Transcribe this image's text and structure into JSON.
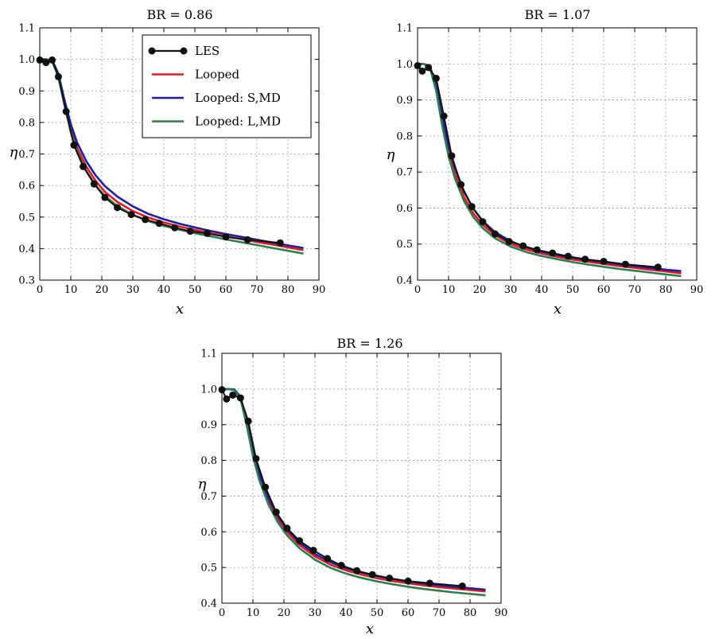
{
  "figure": {
    "legend": [
      {
        "label": "LES",
        "color": "#111111",
        "marker": true
      },
      {
        "label": "Looped",
        "color": "#e31a1c",
        "marker": false
      },
      {
        "label": "Looped: S,MD",
        "color": "#1f1f9f",
        "marker": false
      },
      {
        "label": "Looped: L,MD",
        "color": "#2e7d4f",
        "marker": false
      }
    ]
  },
  "chart_data": [
    {
      "type": "line",
      "title": "BR = 0.86",
      "xlabel": "x",
      "ylabel": "η",
      "xlim": [
        0,
        90
      ],
      "ylim": [
        0.3,
        1.1
      ],
      "xticks": [
        "0",
        "10",
        "20",
        "30",
        "40",
        "50",
        "60",
        "70",
        "80",
        "90"
      ],
      "yticks": [
        "0.3",
        "0.4",
        "0.5",
        "0.6",
        "0.7",
        "0.8",
        "0.9",
        "1.0",
        "1.1"
      ],
      "grid": true,
      "legend_position": "top-right",
      "series": [
        {
          "name": "LES",
          "color": "#111111",
          "x": [
            0,
            2,
            4,
            6,
            8.5,
            11,
            14,
            17.5,
            21,
            25,
            29.5,
            34,
            38.5,
            43.5,
            48.5,
            54,
            60,
            67,
            77.5
          ],
          "y": [
            0.998,
            0.99,
            0.998,
            0.945,
            0.835,
            0.728,
            0.66,
            0.605,
            0.562,
            0.53,
            0.508,
            0.492,
            0.48,
            0.466,
            0.455,
            0.448,
            0.437,
            0.428,
            0.418
          ]
        },
        {
          "name": "Looped",
          "color": "#e31a1c",
          "x": [
            0,
            2,
            4,
            6,
            8,
            10,
            12,
            15,
            18,
            21,
            25,
            30,
            35,
            40,
            45,
            50,
            55,
            60,
            65,
            70,
            75,
            80,
            85
          ],
          "y": [
            1.0,
            1.0,
            0.995,
            0.95,
            0.86,
            0.78,
            0.72,
            0.66,
            0.615,
            0.58,
            0.548,
            0.519,
            0.498,
            0.483,
            0.47,
            0.459,
            0.449,
            0.439,
            0.43,
            0.421,
            0.413,
            0.404,
            0.395
          ]
        },
        {
          "name": "Looped: S,MD",
          "color": "#1f1f9f",
          "x": [
            0,
            2,
            4,
            6,
            8,
            10,
            12,
            15,
            18,
            21,
            25,
            30,
            35,
            40,
            45,
            50,
            55,
            60,
            65,
            70,
            75,
            80,
            85
          ],
          "y": [
            1.0,
            1.0,
            0.997,
            0.955,
            0.87,
            0.795,
            0.737,
            0.677,
            0.632,
            0.598,
            0.565,
            0.534,
            0.51,
            0.493,
            0.479,
            0.467,
            0.456,
            0.446,
            0.437,
            0.428,
            0.419,
            0.41,
            0.402
          ]
        },
        {
          "name": "Looped: L,MD",
          "color": "#2e7d4f",
          "x": [
            0,
            2,
            4,
            6,
            8,
            10,
            12,
            15,
            18,
            21,
            25,
            30,
            35,
            40,
            45,
            50,
            55,
            60,
            65,
            70,
            75,
            80,
            85
          ],
          "y": [
            1.0,
            1.0,
            0.993,
            0.945,
            0.853,
            0.77,
            0.708,
            0.646,
            0.601,
            0.567,
            0.535,
            0.507,
            0.487,
            0.472,
            0.46,
            0.449,
            0.439,
            0.429,
            0.42,
            0.411,
            0.402,
            0.393,
            0.384
          ]
        }
      ]
    },
    {
      "type": "line",
      "title": "BR = 1.07",
      "xlabel": "x",
      "ylabel": "η",
      "xlim": [
        0,
        90
      ],
      "ylim": [
        0.4,
        1.1
      ],
      "xticks": [
        "0",
        "10",
        "20",
        "30",
        "40",
        "50",
        "60",
        "70",
        "80",
        "90"
      ],
      "yticks": [
        "0.4",
        "0.5",
        "0.6",
        "0.7",
        "0.8",
        "0.9",
        "1.0",
        "1.1"
      ],
      "grid": true,
      "series": [
        {
          "name": "LES",
          "color": "#111111",
          "x": [
            0,
            1.5,
            3.5,
            6,
            8.5,
            11,
            14,
            17.5,
            21,
            25,
            29.5,
            34,
            38.5,
            43.5,
            48.5,
            54,
            60,
            67,
            77.5
          ],
          "y": [
            0.995,
            0.98,
            0.99,
            0.96,
            0.855,
            0.745,
            0.665,
            0.604,
            0.562,
            0.528,
            0.507,
            0.495,
            0.484,
            0.475,
            0.466,
            0.458,
            0.452,
            0.444,
            0.436
          ]
        },
        {
          "name": "Looped",
          "color": "#e31a1c",
          "x": [
            0,
            2,
            4,
            6,
            8,
            10,
            12,
            15,
            18,
            21,
            25,
            30,
            35,
            40,
            45,
            50,
            55,
            60,
            65,
            70,
            75,
            80,
            85
          ],
          "y": [
            1.0,
            1.0,
            0.99,
            0.93,
            0.835,
            0.755,
            0.695,
            0.63,
            0.585,
            0.553,
            0.524,
            0.5,
            0.485,
            0.474,
            0.465,
            0.457,
            0.451,
            0.445,
            0.439,
            0.434,
            0.429,
            0.424,
            0.419
          ]
        },
        {
          "name": "Looped: S,MD",
          "color": "#1f1f9f",
          "x": [
            0,
            2,
            4,
            6,
            8,
            10,
            12,
            15,
            18,
            21,
            25,
            30,
            35,
            40,
            45,
            50,
            55,
            60,
            65,
            70,
            75,
            80,
            85
          ],
          "y": [
            1.0,
            1.0,
            0.993,
            0.94,
            0.85,
            0.772,
            0.712,
            0.645,
            0.598,
            0.564,
            0.533,
            0.508,
            0.491,
            0.479,
            0.47,
            0.462,
            0.456,
            0.45,
            0.444,
            0.439,
            0.434,
            0.429,
            0.425
          ]
        },
        {
          "name": "Looped: L,MD",
          "color": "#2e7d4f",
          "x": [
            0,
            2,
            4,
            6,
            8,
            10,
            12,
            15,
            18,
            21,
            25,
            30,
            35,
            40,
            45,
            50,
            55,
            60,
            65,
            70,
            75,
            80,
            85
          ],
          "y": [
            1.0,
            1.0,
            0.988,
            0.925,
            0.826,
            0.744,
            0.683,
            0.619,
            0.575,
            0.544,
            0.516,
            0.493,
            0.478,
            0.467,
            0.458,
            0.45,
            0.443,
            0.437,
            0.431,
            0.426,
            0.421,
            0.416,
            0.411
          ]
        }
      ]
    },
    {
      "type": "line",
      "title": "BR = 1.26",
      "xlabel": "x",
      "ylabel": "η",
      "xlim": [
        0,
        90
      ],
      "ylim": [
        0.4,
        1.1
      ],
      "xticks": [
        "0",
        "10",
        "20",
        "30",
        "40",
        "50",
        "60",
        "70",
        "80",
        "90"
      ],
      "yticks": [
        "0.4",
        "0.5",
        "0.6",
        "0.7",
        "0.8",
        "0.9",
        "1.0",
        "1.1"
      ],
      "grid": true,
      "series": [
        {
          "name": "LES",
          "color": "#111111",
          "x": [
            0,
            1.5,
            3.5,
            6,
            8.5,
            11,
            14,
            17.5,
            21,
            25,
            29.5,
            34,
            38.5,
            43.5,
            48.5,
            54,
            60,
            67,
            77.5
          ],
          "y": [
            0.998,
            0.972,
            0.983,
            0.975,
            0.91,
            0.805,
            0.725,
            0.655,
            0.61,
            0.575,
            0.548,
            0.525,
            0.506,
            0.491,
            0.48,
            0.47,
            0.462,
            0.456,
            0.448
          ]
        },
        {
          "name": "Looped",
          "color": "#e31a1c",
          "x": [
            0,
            2,
            4,
            6,
            8,
            10,
            12,
            15,
            18,
            21,
            25,
            30,
            35,
            40,
            45,
            50,
            55,
            60,
            65,
            70,
            75,
            80,
            85
          ],
          "y": [
            1.0,
            1.0,
            0.998,
            0.975,
            0.905,
            0.82,
            0.755,
            0.685,
            0.636,
            0.599,
            0.563,
            0.531,
            0.508,
            0.492,
            0.48,
            0.47,
            0.462,
            0.456,
            0.45,
            0.445,
            0.441,
            0.437,
            0.433
          ]
        },
        {
          "name": "Looped: S,MD",
          "color": "#1f1f9f",
          "x": [
            0,
            2,
            4,
            6,
            8,
            10,
            12,
            15,
            18,
            21,
            25,
            30,
            35,
            40,
            45,
            50,
            55,
            60,
            65,
            70,
            75,
            80,
            85
          ],
          "y": [
            1.0,
            1.0,
            0.999,
            0.978,
            0.91,
            0.828,
            0.764,
            0.694,
            0.645,
            0.607,
            0.57,
            0.538,
            0.515,
            0.498,
            0.486,
            0.476,
            0.468,
            0.461,
            0.455,
            0.45,
            0.446,
            0.442,
            0.438
          ]
        },
        {
          "name": "Looped: L,MD",
          "color": "#2e7d4f",
          "x": [
            0,
            2,
            4,
            6,
            8,
            10,
            12,
            15,
            18,
            21,
            25,
            30,
            35,
            40,
            45,
            50,
            55,
            60,
            65,
            70,
            75,
            80,
            85
          ],
          "y": [
            1.0,
            1.0,
            0.997,
            0.972,
            0.898,
            0.812,
            0.746,
            0.676,
            0.627,
            0.59,
            0.554,
            0.522,
            0.499,
            0.483,
            0.471,
            0.461,
            0.453,
            0.446,
            0.44,
            0.435,
            0.43,
            0.426,
            0.422
          ]
        }
      ]
    }
  ]
}
